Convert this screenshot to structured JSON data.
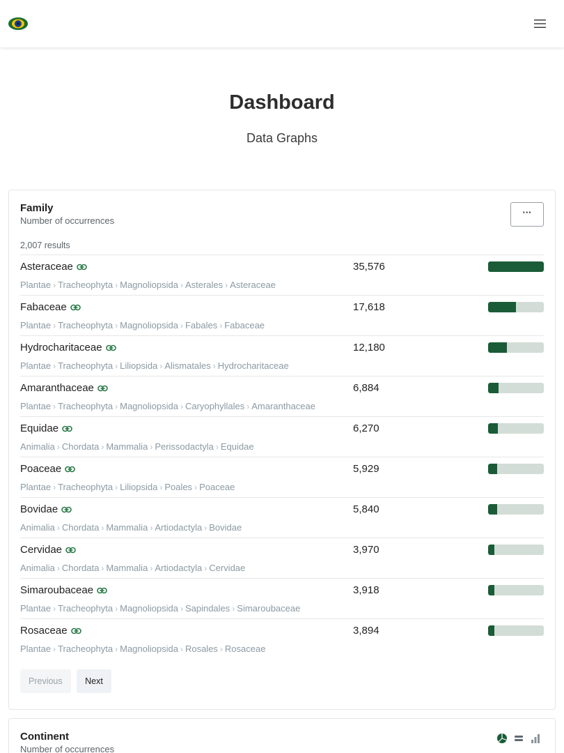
{
  "header": {
    "logo_icon": "eye-logo-icon",
    "menu_icon": "hamburger-menu-icon"
  },
  "page": {
    "title": "Dashboard",
    "subtitle": "Data Graphs"
  },
  "family_card": {
    "title": "Family",
    "subtitle": "Number of occurrences",
    "more_label": "···",
    "results": "2,007 results",
    "link_icon": "link-icon",
    "bar_color": "#1a5c38",
    "bar_track_color": "#d3ddd7",
    "rows": [
      {
        "name": "Asteraceae",
        "count": "35,576",
        "value": 35576,
        "path": [
          "Plantae",
          "Tracheophyta",
          "Magnoliopsida",
          "Asterales",
          "Asteraceae"
        ]
      },
      {
        "name": "Fabaceae",
        "count": "17,618",
        "value": 17618,
        "path": [
          "Plantae",
          "Tracheophyta",
          "Magnoliopsida",
          "Fabales",
          "Fabaceae"
        ]
      },
      {
        "name": "Hydrocharitaceae",
        "count": "12,180",
        "value": 12180,
        "path": [
          "Plantae",
          "Tracheophyta",
          "Liliopsida",
          "Alismatales",
          "Hydrocharitaceae"
        ]
      },
      {
        "name": "Amaranthaceae",
        "count": "6,884",
        "value": 6884,
        "path": [
          "Plantae",
          "Tracheophyta",
          "Magnoliopsida",
          "Caryophyllales",
          "Amaranthaceae"
        ]
      },
      {
        "name": "Equidae",
        "count": "6,270",
        "value": 6270,
        "path": [
          "Animalia",
          "Chordata",
          "Mammalia",
          "Perissodactyla",
          "Equidae"
        ]
      },
      {
        "name": "Poaceae",
        "count": "5,929",
        "value": 5929,
        "path": [
          "Plantae",
          "Tracheophyta",
          "Liliopsida",
          "Poales",
          "Poaceae"
        ]
      },
      {
        "name": "Bovidae",
        "count": "5,840",
        "value": 5840,
        "path": [
          "Animalia",
          "Chordata",
          "Mammalia",
          "Artiodactyla",
          "Bovidae"
        ]
      },
      {
        "name": "Cervidae",
        "count": "3,970",
        "value": 3970,
        "path": [
          "Animalia",
          "Chordata",
          "Mammalia",
          "Artiodactyla",
          "Cervidae"
        ]
      },
      {
        "name": "Simaroubaceae",
        "count": "3,918",
        "value": 3918,
        "path": [
          "Plantae",
          "Tracheophyta",
          "Magnoliopsida",
          "Sapindales",
          "Simaroubaceae"
        ]
      },
      {
        "name": "Rosaceae",
        "count": "3,894",
        "value": 3894,
        "path": [
          "Plantae",
          "Tracheophyta",
          "Magnoliopsida",
          "Rosales",
          "Rosaceae"
        ]
      }
    ],
    "pagination": {
      "previous": "Previous",
      "next": "Next"
    }
  },
  "continent_card": {
    "title": "Continent",
    "subtitle": "Number of occurrences",
    "view_icons": [
      "pie-chart-icon",
      "table-view-icon",
      "bar-chart-icon"
    ]
  }
}
